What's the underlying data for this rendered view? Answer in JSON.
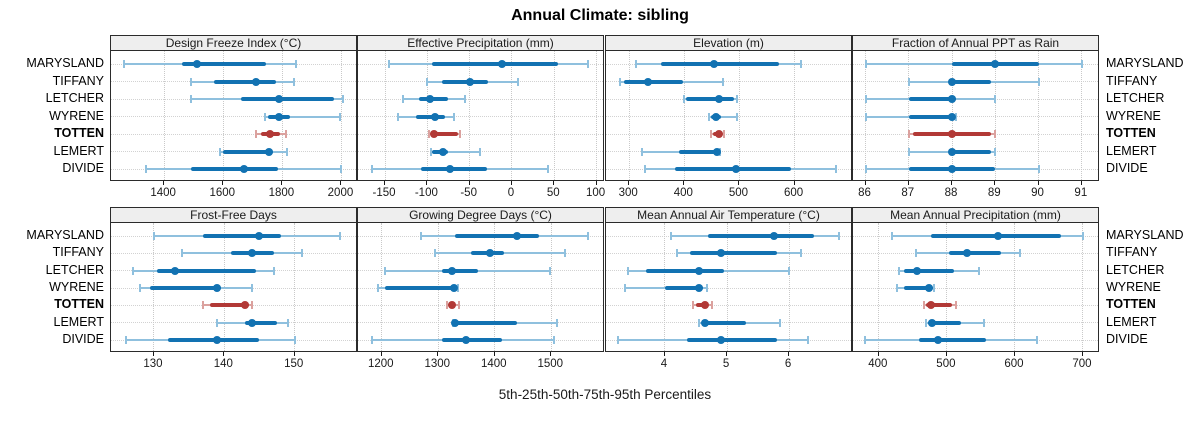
{
  "colors": {
    "blue_dark": "#1272b2",
    "blue_light": "#8fc0de",
    "red_dark": "#b23936",
    "red_light": "#dba19e",
    "grid": "#cccccc",
    "strip_fill": "#eeeeee",
    "border": "#2b2b2b"
  },
  "chart_data": {
    "type": "dot-interval percentile trellis (8 panels)",
    "title": "Annual Climate: sibling",
    "footer": "5th-25th-50th-75th-95th Percentiles",
    "stations": [
      "MARYSLAND",
      "TIFFANY",
      "LETCHER",
      "WYRENE",
      "TOTTEN",
      "LEMERT",
      "DIVIDE"
    ],
    "highlighted_station": "TOTTEN",
    "percentile_order": [
      "p5",
      "p25",
      "p50",
      "p75",
      "p95"
    ],
    "legend_position": "none",
    "grid": "dotted",
    "panels": [
      {
        "title": "Design Freeze Index (°C)",
        "row": 0,
        "col": 0,
        "domain": [
          1220,
          2056
        ],
        "ticks": [
          1400,
          1600,
          1800,
          2000
        ],
        "values": {
          "MARYSLAND": [
            1265,
            1460,
            1510,
            1745,
            1845
          ],
          "TIFFANY": [
            1490,
            1570,
            1710,
            1780,
            1840
          ],
          "LETCHER": [
            1490,
            1660,
            1790,
            1975,
            2005
          ],
          "WYRENE": [
            1740,
            1752,
            1787,
            1825,
            1995
          ],
          "TOTTEN": [
            1712,
            1728,
            1758,
            1793,
            1812
          ],
          "LEMERT": [
            1590,
            1600,
            1755,
            1768,
            1815
          ],
          "DIVIDE": [
            1340,
            1490,
            1670,
            1785,
            2000
          ]
        }
      },
      {
        "title": "Effective Precipitation (mm)",
        "row": 0,
        "col": 1,
        "domain": [
          -182,
          110
        ],
        "ticks": [
          -150,
          -100,
          -50,
          0,
          50,
          100
        ],
        "values": {
          "MARYSLAND": [
            -145,
            -94,
            -12,
            54,
            90
          ],
          "TIFFANY": [
            -100,
            -83,
            -50,
            -28,
            7
          ],
          "LETCHER": [
            -129,
            -110,
            -97,
            -75,
            -55
          ],
          "WYRENE": [
            -135,
            -114,
            -91,
            -79,
            -68
          ],
          "TOTTEN": [
            -98,
            -96,
            -92,
            -64,
            -62
          ],
          "LEMERT": [
            -96,
            -94,
            -82,
            -76,
            -38
          ],
          "DIVIDE": [
            -166,
            -107,
            -73,
            -29,
            43
          ]
        }
      },
      {
        "title": "Elevation (m)",
        "row": 0,
        "col": 2,
        "domain": [
          258,
          706
        ],
        "ticks": [
          300,
          400,
          500,
          600
        ],
        "values": {
          "MARYSLAND": [
            313,
            358,
            454,
            571,
            612
          ],
          "TIFFANY": [
            283,
            291,
            335,
            398,
            470
          ],
          "LETCHER": [
            399,
            403,
            463,
            490,
            496
          ],
          "WYRENE": [
            445,
            448,
            458,
            466,
            495
          ],
          "TOTTEN": [
            449,
            452,
            463,
            468,
            472
          ],
          "LEMERT": [
            324,
            390,
            460,
            462,
            464
          ],
          "DIVIDE": [
            328,
            383,
            494,
            594,
            675
          ]
        }
      },
      {
        "title": "Fraction of Annual PPT as Rain",
        "row": 0,
        "col": 3,
        "domain": [
          85.71,
          91.42
        ],
        "ticks": [
          86,
          87,
          88,
          89,
          90,
          91
        ],
        "values": {
          "MARYSLAND": [
            86,
            88,
            89,
            90,
            91
          ],
          "TIFFANY": [
            87,
            88,
            88,
            88.9,
            90
          ],
          "LETCHER": [
            86,
            87,
            88,
            88.1,
            89
          ],
          "WYRENE": [
            86,
            87,
            88,
            88.05,
            88.1
          ],
          "TOTTEN": [
            87,
            87.1,
            88,
            88.9,
            89
          ],
          "LEMERT": [
            87,
            88,
            88,
            88.9,
            89
          ],
          "DIVIDE": [
            86,
            87,
            88,
            89,
            90
          ]
        }
      },
      {
        "title": "Frost-Free Days",
        "row": 1,
        "col": 0,
        "domain": [
          123.9,
          159
        ],
        "ticks": [
          130,
          140,
          150
        ],
        "values": {
          "MARYSLAND": [
            130,
            137,
            145,
            148,
            156.5
          ],
          "TIFFANY": [
            134,
            141,
            144,
            147,
            151
          ],
          "LETCHER": [
            127,
            130.5,
            133,
            144.5,
            147
          ],
          "WYRENE": [
            128,
            129.5,
            139,
            139.5,
            144
          ],
          "TOTTEN": [
            137,
            138,
            143,
            143.5,
            144
          ],
          "LEMERT": [
            139,
            143,
            144,
            147.5,
            149
          ],
          "DIVIDE": [
            126,
            132,
            139,
            145,
            150
          ]
        }
      },
      {
        "title": "Growing Degree Days (°C)",
        "row": 1,
        "col": 1,
        "domain": [
          1158,
          1595
        ],
        "ticks": [
          1200,
          1300,
          1400,
          1500
        ],
        "values": {
          "MARYSLAND": [
            1270,
            1330,
            1440,
            1478,
            1565
          ],
          "TIFFANY": [
            1295,
            1358,
            1392,
            1416,
            1525
          ],
          "LETCHER": [
            1206,
            1306,
            1324,
            1371,
            1498
          ],
          "WYRENE": [
            1193,
            1206,
            1327,
            1331,
            1335
          ],
          "TOTTEN": [
            1316,
            1319,
            1324,
            1330,
            1336
          ],
          "LEMERT": [
            1326,
            1327,
            1329,
            1440,
            1510
          ],
          "DIVIDE": [
            1182,
            1306,
            1349,
            1413,
            1504
          ]
        }
      },
      {
        "title": "Mean Annual Air Temperature (°C)",
        "row": 1,
        "col": 2,
        "domain": [
          3.05,
          7.03
        ],
        "ticks": [
          4,
          5,
          6
        ],
        "values": {
          "MARYSLAND": [
            4.1,
            4.7,
            5.75,
            6.4,
            6.8
          ],
          "TIFFANY": [
            4.2,
            4.4,
            4.9,
            5.8,
            6.2
          ],
          "LETCHER": [
            3.4,
            3.7,
            4.55,
            4.95,
            6.0
          ],
          "WYRENE": [
            3.35,
            4.0,
            4.55,
            4.62,
            4.67
          ],
          "TOTTEN": [
            4.45,
            4.5,
            4.65,
            4.7,
            4.75
          ],
          "LEMERT": [
            4.55,
            4.6,
            4.65,
            5.3,
            5.85
          ],
          "DIVIDE": [
            3.25,
            4.35,
            4.9,
            5.8,
            6.3
          ]
        }
      },
      {
        "title": "Mean Annual Precipitation (mm)",
        "row": 1,
        "col": 3,
        "domain": [
          362,
          725
        ],
        "ticks": [
          400,
          500,
          600,
          700
        ],
        "values": {
          "MARYSLAND": [
            420,
            476,
            575,
            668,
            700
          ],
          "TIFFANY": [
            455,
            503,
            530,
            580,
            607
          ],
          "LETCHER": [
            430,
            437,
            456,
            510,
            547
          ],
          "WYRENE": [
            427,
            437,
            473,
            479,
            481
          ],
          "TOTTEN": [
            466,
            470,
            477,
            508,
            514
          ],
          "LEMERT": [
            470,
            472,
            478,
            520,
            555
          ],
          "DIVIDE": [
            380,
            459,
            487,
            557,
            632
          ]
        }
      }
    ]
  }
}
